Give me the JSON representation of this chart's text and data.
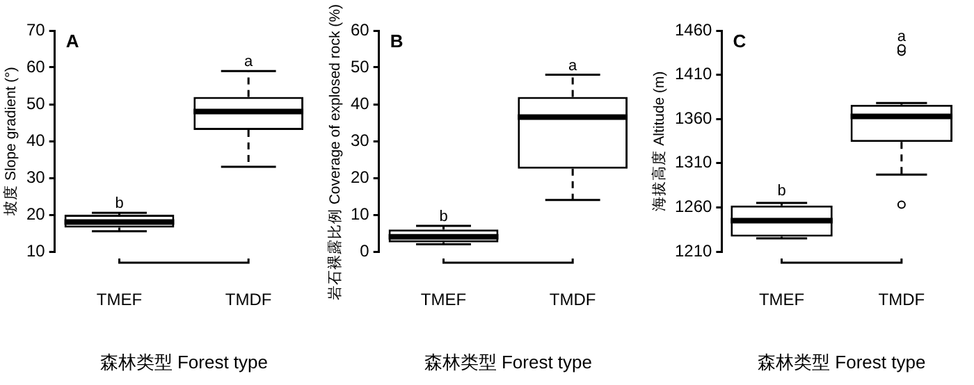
{
  "chart_data": [
    {
      "type": "box",
      "title": "A",
      "ylabel": "坡度 Slope gradient (°)",
      "xlabel": "森林类型 Forest type",
      "categories": [
        "TMEF",
        "TMDF"
      ],
      "boxes": [
        {
          "low": 15.5,
          "q1": 16.5,
          "median": 18,
          "q3": 20,
          "high": 20.5
        },
        {
          "low": 33,
          "q1": 43,
          "median": 48,
          "q3": 52,
          "high": 59
        }
      ],
      "ylim": [
        10,
        70
      ],
      "yticks": [
        10,
        20,
        30,
        40,
        50,
        60,
        70
      ],
      "grid": false,
      "annotations": [
        {
          "text": "b",
          "x": "TMEF",
          "y": 20.5
        },
        {
          "text": "a",
          "x": "TMDF",
          "y": 59
        }
      ]
    },
    {
      "type": "box",
      "title": "B",
      "ylabel": "岩石裸露比例 Coverage of explosed rock (%)",
      "xlabel": "森林类型 Forest type",
      "categories": [
        "TMEF",
        "TMDF"
      ],
      "boxes": [
        {
          "low": 2,
          "q1": 2.5,
          "median": 4,
          "q3": 6,
          "high": 7
        },
        {
          "low": 14,
          "q1": 22.5,
          "median": 36.5,
          "q3": 42,
          "high": 48
        }
      ],
      "ylim": [
        0,
        60
      ],
      "yticks": [
        0,
        10,
        20,
        30,
        40,
        50,
        60
      ],
      "grid": false,
      "annotations": [
        {
          "text": "b",
          "x": "TMEF",
          "y": 7
        },
        {
          "text": "a",
          "x": "TMDF",
          "y": 48
        }
      ]
    },
    {
      "type": "box",
      "title": "C",
      "ylabel": "海拔高度 Altitude (m)",
      "xlabel": "森林类型 Forest type",
      "categories": [
        "TMEF",
        "TMDF"
      ],
      "boxes": [
        {
          "low": 1225,
          "q1": 1227,
          "median": 1245,
          "q3": 1262,
          "high": 1265
        },
        {
          "low": 1297,
          "q1": 1334,
          "median": 1363,
          "q3": 1376,
          "high": 1378,
          "outliers": [
            1263,
            1436,
            1440
          ]
        }
      ],
      "ylim": [
        1210,
        1460
      ],
      "yticks": [
        1210,
        1260,
        1310,
        1360,
        1410,
        1460
      ],
      "grid": false,
      "annotations": [
        "b",
        "a"
      ]
    }
  ]
}
